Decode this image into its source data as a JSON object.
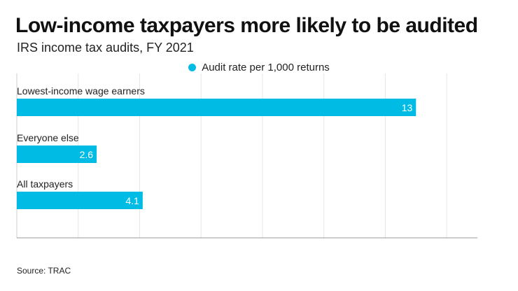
{
  "chart_data": {
    "type": "bar",
    "orientation": "horizontal",
    "title": "Low-income taxpayers more likely to be audited",
    "subtitle": "IRS income tax audits, FY 2021",
    "categories": [
      "Lowest-income wage earners",
      "Everyone else",
      "All taxpayers"
    ],
    "series": [
      {
        "name": "Audit rate per 1,000 returns",
        "values": [
          13,
          2.6,
          4.1
        ],
        "color": "#00BCE4"
      }
    ],
    "data_labels": [
      "13",
      "2.6",
      "4.1"
    ],
    "xlim": [
      0,
      15
    ],
    "grid_step": 2,
    "grid": true,
    "legend_position": "top-center",
    "source": "Source: TRAC"
  }
}
